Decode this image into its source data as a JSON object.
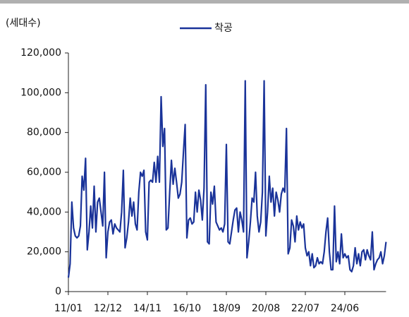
{
  "chart_data": {
    "type": "line",
    "y_label": "(세대수)",
    "categories": [
      "11/01",
      null,
      null,
      null,
      null,
      null,
      null,
      null,
      null,
      null,
      null,
      null,
      null,
      null,
      null,
      null,
      null,
      null,
      null,
      null,
      null,
      null,
      null,
      "12/12",
      null,
      null,
      null,
      null,
      null,
      null,
      null,
      null,
      null,
      null,
      null,
      null,
      null,
      null,
      null,
      null,
      null,
      null,
      null,
      null,
      null,
      null,
      "14/11",
      null,
      null,
      null,
      null,
      null,
      null,
      null,
      null,
      null,
      null,
      null,
      null,
      null,
      null,
      null,
      null,
      null,
      null,
      null,
      null,
      null,
      null,
      "16/10",
      null,
      null,
      null,
      null,
      null,
      null,
      null,
      null,
      null,
      null,
      null,
      null,
      null,
      null,
      null,
      null,
      null,
      null,
      null,
      null,
      null,
      null,
      "18/09",
      null,
      null,
      null,
      null,
      null,
      null,
      null,
      null,
      null,
      null,
      null,
      null,
      null,
      null,
      null,
      null,
      null,
      null,
      null,
      null,
      null,
      null,
      "20/08",
      null,
      null,
      null,
      null,
      null,
      null,
      null,
      null,
      null,
      null,
      null,
      null,
      null,
      null,
      null,
      null,
      null,
      null,
      null,
      null,
      null,
      null,
      "22/07",
      null,
      null,
      null,
      null,
      null,
      null,
      null,
      null,
      null,
      null,
      null,
      null,
      null,
      null,
      null,
      null,
      null,
      null,
      null,
      null,
      null,
      null,
      "24/06",
      null,
      null,
      null,
      null,
      null,
      null,
      null,
      null,
      null,
      null,
      null,
      null,
      null,
      null,
      null,
      null,
      null,
      null,
      null,
      null,
      null,
      null,
      null,
      null
    ],
    "series": [
      {
        "name": "착공",
        "color": "#1a3399",
        "values": [
          7000,
          14000,
          45000,
          32000,
          28000,
          27000,
          28000,
          33000,
          58000,
          51000,
          67000,
          21000,
          30000,
          43000,
          32000,
          53000,
          30000,
          45000,
          47000,
          40000,
          33000,
          60000,
          17000,
          30000,
          35000,
          36000,
          29000,
          34000,
          32000,
          31000,
          30000,
          40000,
          61000,
          22000,
          27000,
          35000,
          47000,
          38000,
          45000,
          34000,
          31000,
          50000,
          60000,
          58000,
          61000,
          30000,
          26000,
          55000,
          56000,
          55000,
          65000,
          55000,
          68000,
          55000,
          98000,
          73000,
          82000,
          31000,
          32000,
          50000,
          66000,
          54000,
          62000,
          55000,
          47000,
          49000,
          55000,
          70000,
          84000,
          27000,
          36000,
          37000,
          34000,
          35000,
          50000,
          40000,
          51000,
          46000,
          36000,
          52000,
          104000,
          25000,
          24000,
          50000,
          44000,
          53000,
          35000,
          33000,
          31000,
          32000,
          30000,
          34000,
          74000,
          25000,
          24000,
          30000,
          36000,
          41000,
          42000,
          30000,
          40000,
          36000,
          30000,
          106000,
          17000,
          25000,
          35000,
          47000,
          45000,
          60000,
          38000,
          30000,
          35000,
          50000,
          106000,
          28000,
          40000,
          58000,
          45000,
          52000,
          38000,
          50000,
          46000,
          40000,
          49000,
          52000,
          50000,
          82000,
          19000,
          22000,
          36000,
          33000,
          25000,
          38000,
          31000,
          35000,
          32000,
          34000,
          22000,
          18000,
          20000,
          13000,
          19000,
          12000,
          13000,
          17000,
          14000,
          15000,
          14000,
          20000,
          30000,
          37000,
          20000,
          11000,
          11000,
          43000,
          15000,
          20000,
          14000,
          29000,
          17000,
          19000,
          17000,
          18000,
          11000,
          10000,
          13000,
          22000,
          14000,
          19000,
          13000,
          20000,
          21000,
          16000,
          21000,
          18000,
          16000,
          30000,
          11000,
          14000,
          16000,
          17000,
          20000,
          14000,
          18000,
          25000
        ]
      }
    ],
    "ylim": [
      0,
      120000
    ],
    "yticks": [
      0,
      {
        "value": 20000,
        "label": "20,000"
      },
      {
        "value": 40000,
        "label": "40,000"
      },
      {
        "value": 60000,
        "label": "60,000"
      },
      {
        "value": 80000,
        "label": "80,000"
      },
      {
        "value": 100000,
        "label": "100,000"
      },
      {
        "value": 120000,
        "label": "120,000"
      }
    ],
    "legend": "top"
  }
}
